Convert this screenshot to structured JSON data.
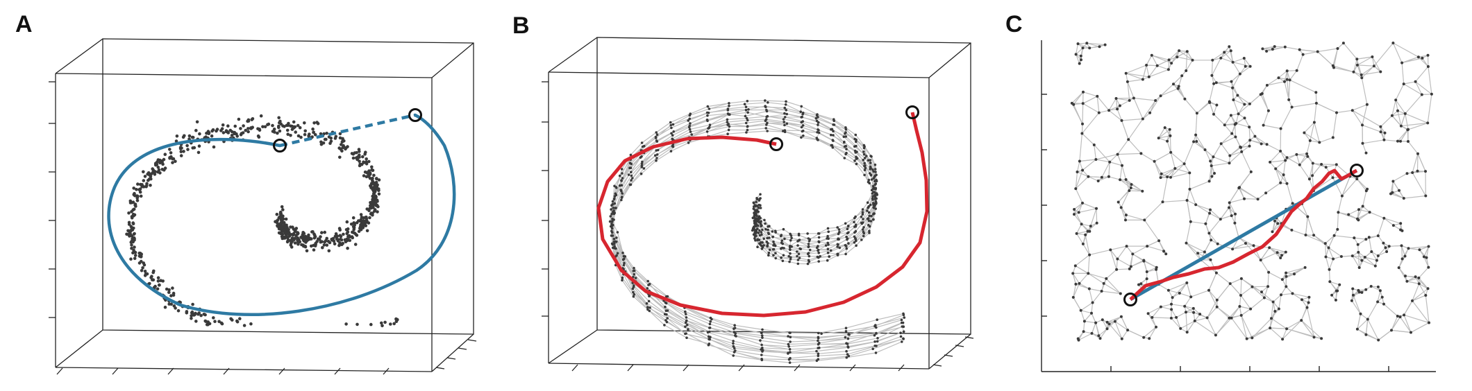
{
  "panels": [
    {
      "id": "A",
      "label": "A"
    },
    {
      "id": "B",
      "label": "B"
    },
    {
      "id": "C",
      "label": "C"
    }
  ],
  "colors": {
    "points": "#3a3a3a",
    "edges": "#bdbdbd",
    "euclidean_path": "#2e7aa3",
    "geodesic_path": "#d7262f",
    "frame": "#222222",
    "endpoint_ring": "#111111"
  },
  "icons": {
    "endpoint": "endpoint-ring-icon"
  }
}
